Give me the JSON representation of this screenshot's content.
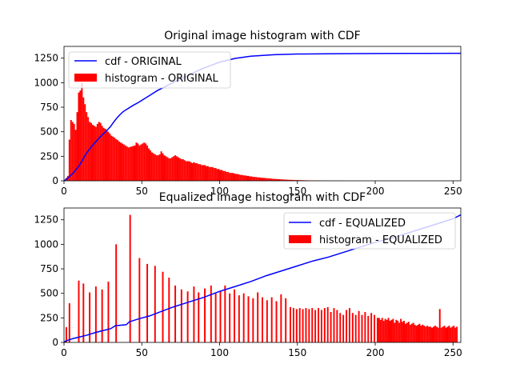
{
  "chart_data": [
    {
      "type": "bar",
      "title": "Original image histogram with CDF",
      "xlim": [
        0,
        255
      ],
      "ylim": [
        0,
        1370
      ],
      "xticks": [
        0,
        50,
        100,
        150,
        200,
        250
      ],
      "yticks": [
        0,
        250,
        500,
        750,
        1000,
        1250
      ],
      "xtick_labels": [
        "0",
        "50",
        "100",
        "150",
        "200",
        "250"
      ],
      "ytick_labels": [
        "0",
        "250",
        "500",
        "750",
        "1000",
        "1250"
      ],
      "legend_position": "top-left",
      "series": [
        {
          "name": "cdf - ORIGINAL",
          "kind": "line",
          "color": "#0000ff",
          "points": [
            [
              0,
              0
            ],
            [
              2,
              20
            ],
            [
              4,
              50
            ],
            [
              6,
              80
            ],
            [
              8,
              120
            ],
            [
              10,
              160
            ],
            [
              12,
              215
            ],
            [
              14,
              270
            ],
            [
              16,
              315
            ],
            [
              18,
              355
            ],
            [
              20,
              390
            ],
            [
              22,
              425
            ],
            [
              24,
              460
            ],
            [
              26,
              490
            ],
            [
              28,
              520
            ],
            [
              30,
              555
            ],
            [
              32,
              600
            ],
            [
              34,
              640
            ],
            [
              36,
              675
            ],
            [
              38,
              705
            ],
            [
              40,
              725
            ],
            [
              44,
              765
            ],
            [
              48,
              800
            ],
            [
              52,
              840
            ],
            [
              56,
              880
            ],
            [
              60,
              920
            ],
            [
              65,
              960
            ],
            [
              70,
              1000
            ],
            [
              75,
              1040
            ],
            [
              80,
              1075
            ],
            [
              85,
              1115
            ],
            [
              90,
              1150
            ],
            [
              95,
              1180
            ],
            [
              100,
              1210
            ],
            [
              110,
              1248
            ],
            [
              120,
              1270
            ],
            [
              135,
              1285
            ],
            [
              150,
              1292
            ],
            [
              175,
              1296
            ],
            [
              200,
              1298
            ],
            [
              230,
              1299
            ],
            [
              255,
              1300
            ]
          ]
        },
        {
          "name": "histogram - ORIGINAL",
          "kind": "bar",
          "color": "#ff0000",
          "x_start": 0,
          "values": [
            5,
            30,
            50,
            420,
            620,
            600,
            580,
            520,
            700,
            900,
            920,
            1000,
            850,
            780,
            700,
            650,
            600,
            590,
            570,
            560,
            550,
            580,
            600,
            590,
            560,
            540,
            530,
            520,
            500,
            480,
            460,
            450,
            440,
            425,
            415,
            400,
            390,
            380,
            370,
            360,
            350,
            340,
            345,
            350,
            355,
            360,
            390,
            380,
            360,
            370,
            380,
            390,
            380,
            360,
            330,
            310,
            290,
            280,
            270,
            260,
            260,
            270,
            300,
            280,
            260,
            250,
            240,
            230,
            230,
            240,
            250,
            260,
            250,
            240,
            230,
            220,
            220,
            210,
            200,
            200,
            200,
            190,
            180,
            190,
            180,
            180,
            170,
            170,
            160,
            160,
            160,
            150,
            150,
            140,
            140,
            140,
            130,
            130,
            120,
            120,
            110,
            110,
            100,
            100,
            90,
            90,
            80,
            80,
            80,
            75,
            70,
            70,
            65,
            60,
            60,
            55,
            55,
            50,
            50,
            45,
            45,
            40,
            40,
            38,
            35,
            35,
            32,
            30,
            30,
            28,
            26,
            25,
            24,
            22,
            20,
            19,
            18,
            17,
            16,
            15,
            14,
            13,
            12,
            11,
            10,
            10,
            9,
            9,
            8,
            8,
            7,
            7,
            6,
            6,
            5,
            5,
            5,
            4,
            4,
            4,
            3,
            3,
            3,
            3,
            2,
            2,
            2,
            2,
            2,
            2,
            1,
            1,
            1,
            1,
            1,
            1,
            1,
            1,
            1,
            1,
            0,
            0,
            0,
            0,
            0,
            0,
            0,
            0,
            0,
            0,
            0,
            0,
            0,
            0,
            0,
            0,
            0,
            0,
            0,
            0,
            0,
            0,
            0,
            0,
            0,
            0,
            0,
            0,
            0,
            0,
            0,
            0,
            0,
            0,
            0,
            0,
            0,
            0,
            0,
            0,
            0,
            0,
            0,
            0,
            0,
            0,
            0,
            0,
            0,
            0,
            0,
            0,
            0,
            0,
            0,
            0,
            0,
            0,
            0,
            0,
            0,
            0,
            0,
            0,
            0,
            0,
            0,
            0,
            0,
            0,
            0,
            0,
            0,
            0,
            0,
            0,
            0,
            0,
            0,
            0,
            0,
            0,
            0,
            0,
            0,
            0,
            0,
            0,
            0,
            0,
            0,
            0
          ]
        }
      ]
    },
    {
      "type": "bar",
      "title": "Equalized image histogram with CDF",
      "xlim": [
        0,
        255
      ],
      "ylim": [
        0,
        1370
      ],
      "xticks": [
        0,
        50,
        100,
        150,
        200,
        250
      ],
      "yticks": [
        0,
        250,
        500,
        750,
        1000,
        1250
      ],
      "xtick_labels": [
        "0",
        "50",
        "100",
        "150",
        "200",
        "250"
      ],
      "ytick_labels": [
        "0",
        "250",
        "500",
        "750",
        "1000",
        "1250"
      ],
      "legend_position": "top-right",
      "series": [
        {
          "name": "cdf - EQUALIZED",
          "kind": "line",
          "color": "#0000ff",
          "points": [
            [
              0,
              5
            ],
            [
              2,
              20
            ],
            [
              4,
              30
            ],
            [
              6,
              40
            ],
            [
              10,
              55
            ],
            [
              15,
              75
            ],
            [
              20,
              100
            ],
            [
              25,
              120
            ],
            [
              30,
              140
            ],
            [
              33,
              170
            ],
            [
              40,
              180
            ],
            [
              42,
              210
            ],
            [
              48,
              240
            ],
            [
              55,
              270
            ],
            [
              60,
              300
            ],
            [
              70,
              360
            ],
            [
              80,
              410
            ],
            [
              90,
              460
            ],
            [
              100,
              520
            ],
            [
              110,
              570
            ],
            [
              120,
              620
            ],
            [
              130,
              680
            ],
            [
              140,
              730
            ],
            [
              150,
              780
            ],
            [
              160,
              830
            ],
            [
              170,
              870
            ],
            [
              180,
              920
            ],
            [
              190,
              970
            ],
            [
              200,
              1020
            ],
            [
              210,
              1060
            ],
            [
              220,
              1110
            ],
            [
              230,
              1160
            ],
            [
              240,
              1210
            ],
            [
              250,
              1260
            ],
            [
              255,
              1300
            ]
          ]
        },
        {
          "name": "histogram - EQUALIZED",
          "kind": "bar",
          "color": "#ff0000",
          "x_start": 0,
          "values": [
            5,
            155,
            0,
            400,
            0,
            0,
            0,
            0,
            0,
            630,
            0,
            0,
            600,
            0,
            0,
            0,
            510,
            0,
            0,
            0,
            570,
            0,
            0,
            0,
            540,
            0,
            0,
            0,
            620,
            0,
            0,
            0,
            0,
            1000,
            0,
            0,
            0,
            0,
            0,
            0,
            0,
            0,
            1300,
            0,
            0,
            0,
            0,
            0,
            860,
            0,
            0,
            0,
            0,
            800,
            0,
            0,
            0,
            0,
            780,
            0,
            0,
            0,
            0,
            720,
            0,
            0,
            0,
            660,
            0,
            0,
            0,
            580,
            0,
            0,
            0,
            540,
            0,
            0,
            0,
            520,
            0,
            0,
            0,
            570,
            0,
            0,
            510,
            0,
            0,
            0,
            550,
            0,
            0,
            0,
            580,
            0,
            0,
            500,
            0,
            0,
            520,
            0,
            0,
            580,
            0,
            0,
            500,
            0,
            0,
            540,
            0,
            0,
            480,
            0,
            0,
            500,
            0,
            0,
            470,
            0,
            0,
            450,
            0,
            0,
            510,
            0,
            0,
            460,
            0,
            0,
            430,
            0,
            0,
            460,
            0,
            0,
            420,
            0,
            0,
            490,
            0,
            0,
            450,
            0,
            0,
            360,
            0,
            350,
            0,
            340,
            0,
            350,
            0,
            340,
            0,
            350,
            0,
            340,
            0,
            350,
            0,
            330,
            0,
            350,
            0,
            330,
            0,
            350,
            0,
            360,
            0,
            310,
            0,
            350,
            0,
            330,
            0,
            300,
            0,
            280,
            0,
            330,
            0,
            350,
            0,
            300,
            0,
            280,
            0,
            320,
            0,
            280,
            0,
            310,
            0,
            270,
            0,
            300,
            0,
            280,
            0,
            250,
            250,
            230,
            250,
            220,
            240,
            230,
            250,
            220,
            230,
            240,
            200,
            230,
            220,
            200,
            240,
            210,
            220,
            190,
            200,
            210,
            180,
            190,
            200,
            180,
            170,
            180,
            190,
            170,
            180,
            170,
            160,
            170,
            160,
            160,
            150,
            160,
            170,
            160,
            150,
            340,
            150,
            160,
            170,
            150,
            160,
            170,
            150,
            160,
            170,
            150,
            160
          ]
        }
      ]
    }
  ]
}
